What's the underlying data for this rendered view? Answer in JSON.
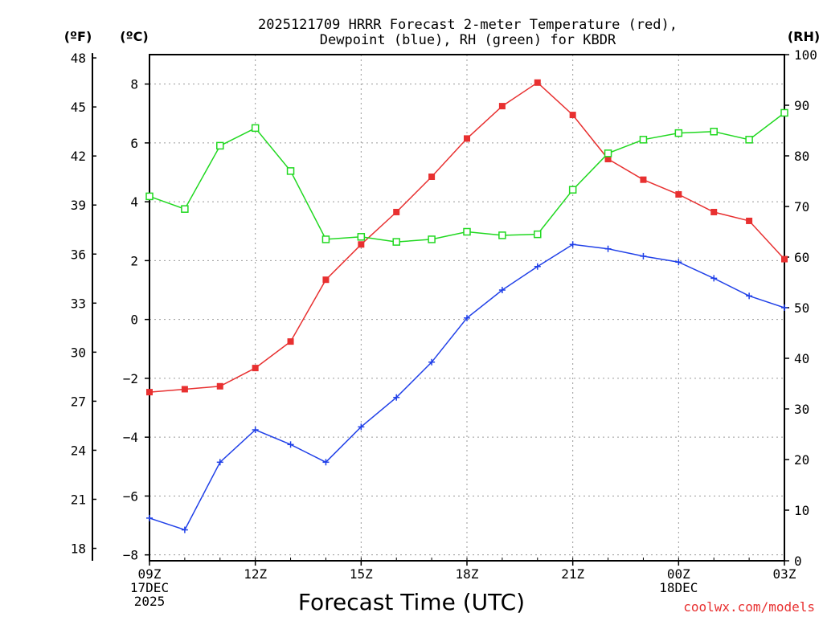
{
  "chart_data": {
    "type": "line",
    "title": [
      "2025121709 HRRR Forecast 2-meter Temperature (red),",
      "Dewpoint (blue), RH (green) for KBDR"
    ],
    "xlabel": "Forecast Time (UTC)",
    "credit": "coolwx.com/models",
    "units": {
      "left_outer": "(ºF)",
      "left_inner": "(ºC)",
      "right": "(RH)"
    },
    "x_hours": [
      0,
      1,
      2,
      3,
      4,
      5,
      6,
      7,
      8,
      9,
      10,
      11,
      12,
      13,
      14,
      15,
      16,
      17,
      18
    ],
    "x_ticks": [
      {
        "hour": 0,
        "lines": [
          "09Z",
          "17DEC",
          "2025"
        ]
      },
      {
        "hour": 3,
        "lines": [
          "12Z"
        ]
      },
      {
        "hour": 6,
        "lines": [
          "15Z"
        ]
      },
      {
        "hour": 9,
        "lines": [
          "18Z"
        ]
      },
      {
        "hour": 12,
        "lines": [
          "21Z"
        ]
      },
      {
        "hour": 15,
        "lines": [
          "00Z",
          "18DEC"
        ]
      },
      {
        "hour": 18,
        "lines": [
          "03Z"
        ]
      }
    ],
    "celsius_axis": {
      "range": [
        -8.2,
        9.0
      ],
      "ticks": [
        -8,
        -6,
        -4,
        -2,
        0,
        2,
        4,
        6,
        8
      ]
    },
    "fahrenheit_axis": {
      "ticks": [
        18,
        21,
        24,
        27,
        30,
        33,
        36,
        39,
        42,
        45,
        48
      ]
    },
    "rh_axis": {
      "range": [
        0,
        100
      ],
      "ticks": [
        0,
        10,
        20,
        30,
        40,
        50,
        60,
        70,
        80,
        90,
        100
      ]
    },
    "series": [
      {
        "name": "Temperature",
        "axis": "celsius",
        "color": "#e83030",
        "marker": "filled-square",
        "values": [
          -2.47,
          -2.37,
          -2.27,
          -1.65,
          -0.75,
          1.35,
          2.55,
          3.65,
          4.85,
          6.15,
          7.25,
          8.05,
          6.95,
          5.45,
          4.75,
          4.25,
          3.65,
          3.35,
          2.05
        ]
      },
      {
        "name": "Dewpoint",
        "axis": "celsius",
        "color": "#2040e8",
        "marker": "plus",
        "values": [
          -6.75,
          -7.15,
          -4.85,
          -3.75,
          -4.25,
          -4.85,
          -3.65,
          -2.65,
          -1.45,
          0.05,
          1.0,
          1.8,
          2.55,
          2.4,
          2.15,
          1.95,
          1.4,
          0.8,
          0.4
        ]
      },
      {
        "name": "RH",
        "axis": "rh",
        "color": "#20d820",
        "marker": "open-square",
        "values": [
          72,
          69.5,
          82,
          85.5,
          77,
          63.5,
          64,
          63,
          63.5,
          65,
          64.3,
          64.5,
          73.3,
          80.5,
          83.2,
          84.5,
          84.8,
          83.2,
          88.5
        ]
      }
    ]
  }
}
